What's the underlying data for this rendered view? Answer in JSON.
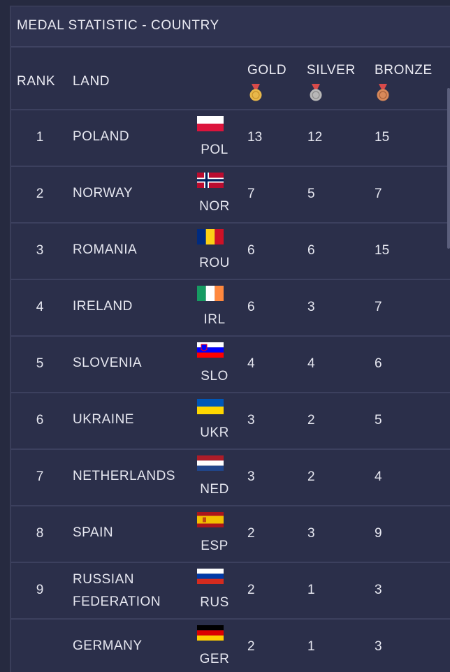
{
  "title": "MEDAL STATISTIC - COUNTRY",
  "headers": {
    "rank": "RANK",
    "land": "LAND",
    "gold": "GOLD",
    "silver": "SILVER",
    "bronze": "BRONZE"
  },
  "colors": {
    "background": "#2b2f4a",
    "gold_medal": "#e8b84a",
    "silver_medal": "#b8b8b8",
    "bronze_medal": "#d8895a"
  },
  "rows": [
    {
      "rank": "1",
      "land": "POLAND",
      "code": "POL",
      "gold": "13",
      "silver": "12",
      "bronze": "15",
      "flag": "poland"
    },
    {
      "rank": "2",
      "land": "NORWAY",
      "code": "NOR",
      "gold": "7",
      "silver": "5",
      "bronze": "7",
      "flag": "norway"
    },
    {
      "rank": "3",
      "land": "ROMANIA",
      "code": "ROU",
      "gold": "6",
      "silver": "6",
      "bronze": "15",
      "flag": "romania"
    },
    {
      "rank": "4",
      "land": "IRELAND",
      "code": "IRL",
      "gold": "6",
      "silver": "3",
      "bronze": "7",
      "flag": "ireland"
    },
    {
      "rank": "5",
      "land": "SLOVENIA",
      "code": "SLO",
      "gold": "4",
      "silver": "4",
      "bronze": "6",
      "flag": "slovenia"
    },
    {
      "rank": "6",
      "land": "UKRAINE",
      "code": "UKR",
      "gold": "3",
      "silver": "2",
      "bronze": "5",
      "flag": "ukraine"
    },
    {
      "rank": "7",
      "land": "NETHERLANDS",
      "code": "NED",
      "gold": "3",
      "silver": "2",
      "bronze": "4",
      "flag": "netherlands"
    },
    {
      "rank": "8",
      "land": "SPAIN",
      "code": "ESP",
      "gold": "2",
      "silver": "3",
      "bronze": "9",
      "flag": "spain"
    },
    {
      "rank": "9",
      "land": "RUSSIAN FEDERATION",
      "code": "RUS",
      "gold": "2",
      "silver": "1",
      "bronze": "3",
      "flag": "russia"
    },
    {
      "rank": "",
      "land": "GERMANY",
      "code": "GER",
      "gold": "2",
      "silver": "1",
      "bronze": "3",
      "flag": "germany"
    }
  ]
}
